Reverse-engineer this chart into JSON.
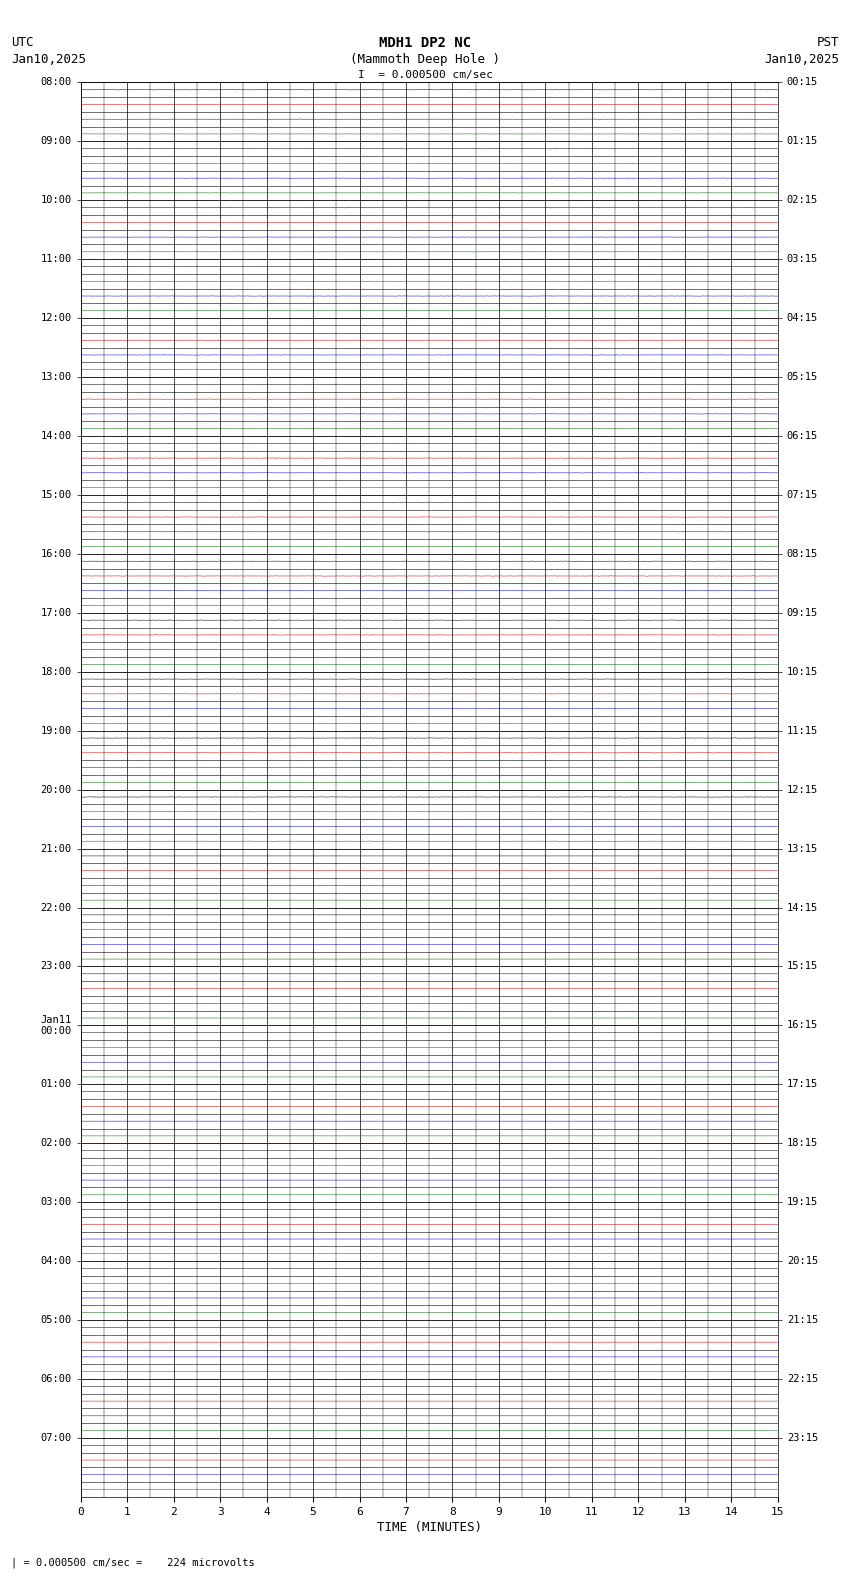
{
  "title_line1": "MDH1 DP2 NC",
  "title_line2": "(Mammoth Deep Hole )",
  "title_line3": "I  = 0.000500 cm/sec",
  "left_header1": "UTC",
  "left_header2": "Jan10,2025",
  "right_header1": "PST",
  "right_header2": "Jan10,2025",
  "xlabel": "TIME (MINUTES)",
  "footer": "| = 0.000500 cm/sec =    224 microvolts",
  "xlim": [
    0,
    15
  ],
  "xticks": [
    0,
    1,
    2,
    3,
    4,
    5,
    6,
    7,
    8,
    9,
    10,
    11,
    12,
    13,
    14,
    15
  ],
  "utc_labels": [
    "08:00",
    "09:00",
    "10:00",
    "11:00",
    "12:00",
    "13:00",
    "14:00",
    "15:00",
    "16:00",
    "17:00",
    "18:00",
    "19:00",
    "20:00",
    "21:00",
    "22:00",
    "23:00",
    "Jan11\n00:00",
    "01:00",
    "02:00",
    "03:00",
    "04:00",
    "05:00",
    "06:00",
    "07:00"
  ],
  "pst_labels": [
    "00:15",
    "01:15",
    "02:15",
    "03:15",
    "04:15",
    "05:15",
    "06:15",
    "07:15",
    "08:15",
    "09:15",
    "10:15",
    "11:15",
    "12:15",
    "13:15",
    "14:15",
    "15:15",
    "16:15",
    "17:15",
    "18:15",
    "19:15",
    "20:15",
    "21:15",
    "22:15",
    "23:15"
  ],
  "n_rows": 24,
  "traces_per_row": 4,
  "trace_colors": [
    "#000000",
    "#cc0000",
    "#0000cc",
    "#006600"
  ],
  "bg_color": "#ffffff",
  "grid_color": "#000000",
  "fig_width": 8.5,
  "fig_height": 15.84,
  "dpi": 100,
  "active_rows": 13,
  "noise_amplitudes": [
    0.012,
    0.01,
    0.008,
    0.006
  ]
}
